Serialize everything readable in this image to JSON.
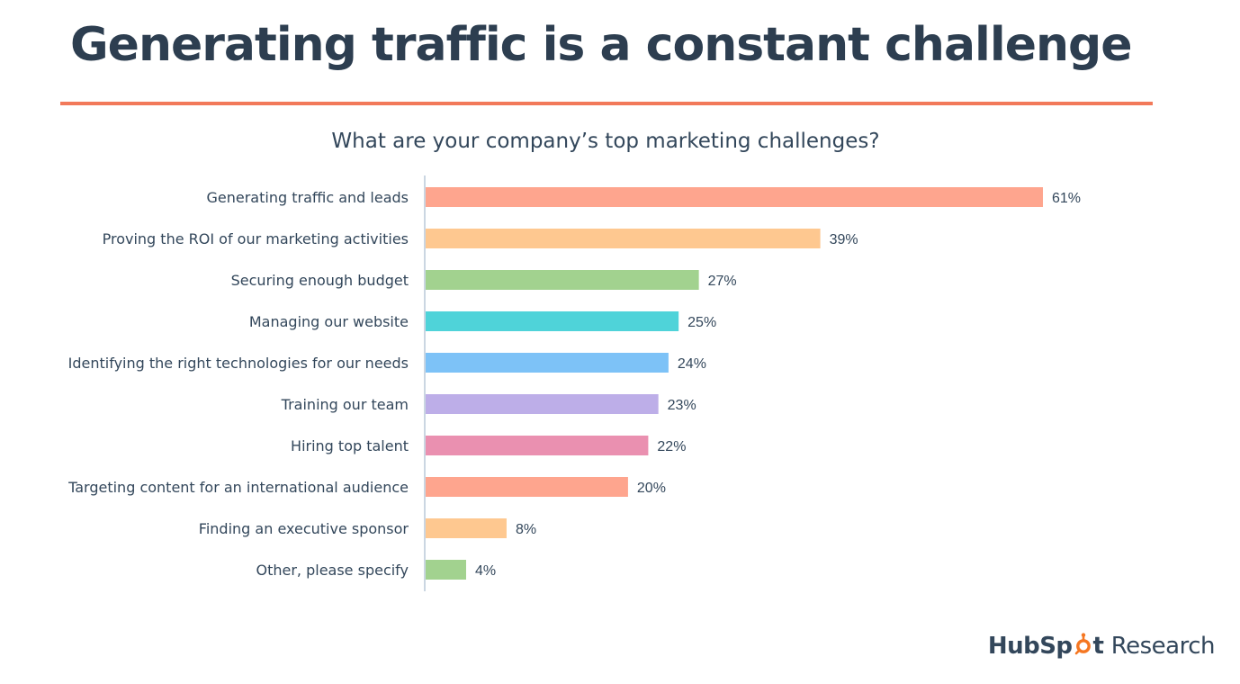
{
  "slide": {
    "title": "Generating traffic is a constant challenge",
    "accent_color": "#f2795a",
    "title_color": "#2d3e50"
  },
  "brand": {
    "name_prefix": "HubSp",
    "name_suffix": "t",
    "product": "Research",
    "icon": "sprocket-icon",
    "icon_color": "#f57722"
  },
  "chart_data": {
    "type": "bar",
    "orientation": "horizontal",
    "title": "What are your company’s top marketing challenges?",
    "xlabel": "",
    "ylabel": "",
    "xlim": [
      0,
      65
    ],
    "grid": false,
    "value_suffix": "%",
    "categories": [
      "Generating traffic and leads",
      "Proving the ROI of our marketing activities",
      "Securing enough budget",
      "Managing our website",
      "Identifying the right technologies for our needs",
      "Training our team",
      "Hiring top talent",
      "Targeting content for an international audience",
      "Finding an executive sponsor",
      "Other, please specify"
    ],
    "values": [
      61,
      39,
      27,
      25,
      24,
      23,
      22,
      20,
      8,
      4
    ],
    "data_labels": [
      "61%",
      "39%",
      "27%",
      "25%",
      "24%",
      "23%",
      "22%",
      "20%",
      "8%",
      "4%"
    ],
    "colors": [
      "#fea58e",
      "#fec890",
      "#a2d28f",
      "#4fd3d9",
      "#7dc2f7",
      "#bdaee8",
      "#ea90b0",
      "#fea58e",
      "#fec890",
      "#a2d28f"
    ]
  }
}
